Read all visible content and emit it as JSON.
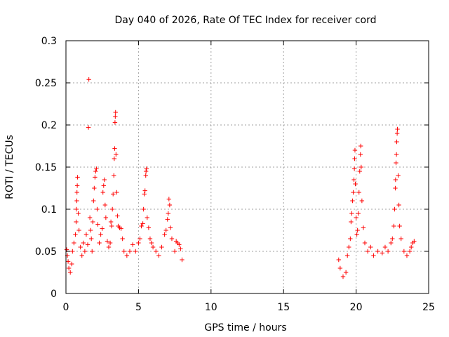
{
  "chart_data": {
    "type": "scatter",
    "title": "Day 040 of 2026, Rate Of TEC Index for receiver cord",
    "xlabel": "GPS time / hours",
    "ylabel": "ROTI / TECUs",
    "xlim": [
      0,
      25
    ],
    "ylim": [
      0,
      0.3
    ],
    "xticks": [
      0,
      5,
      10,
      15,
      20,
      25
    ],
    "xtick_labels": [
      "0",
      "5",
      "10",
      "15",
      "20",
      "25"
    ],
    "yticks": [
      0,
      0.05,
      0.1,
      0.15,
      0.2,
      0.25,
      0.3
    ],
    "ytick_labels": [
      "0",
      "0.05",
      "0.1",
      "0.15",
      "0.2",
      "0.25",
      "0.3"
    ],
    "grid": true,
    "marker": "+",
    "series": [
      {
        "name": "ROTI",
        "color": "#ff0000",
        "points": [
          [
            0.05,
            0.052
          ],
          [
            0.1,
            0.045
          ],
          [
            0.15,
            0.038
          ],
          [
            0.2,
            0.03
          ],
          [
            0.3,
            0.025
          ],
          [
            0.4,
            0.035
          ],
          [
            0.45,
            0.05
          ],
          [
            0.55,
            0.06
          ],
          [
            0.65,
            0.07
          ],
          [
            0.7,
            0.085
          ],
          [
            0.72,
            0.1
          ],
          [
            0.75,
            0.11
          ],
          [
            0.76,
            0.12
          ],
          [
            0.78,
            0.128
          ],
          [
            0.8,
            0.138
          ],
          [
            0.85,
            0.095
          ],
          [
            0.9,
            0.075
          ],
          [
            1.0,
            0.055
          ],
          [
            1.1,
            0.045
          ],
          [
            1.2,
            0.06
          ],
          [
            1.3,
            0.05
          ],
          [
            1.4,
            0.07
          ],
          [
            1.5,
            0.058
          ],
          [
            1.55,
            0.197
          ],
          [
            1.58,
            0.254
          ],
          [
            1.65,
            0.09
          ],
          [
            1.7,
            0.075
          ],
          [
            1.75,
            0.065
          ],
          [
            1.8,
            0.05
          ],
          [
            1.85,
            0.085
          ],
          [
            1.9,
            0.11
          ],
          [
            1.95,
            0.125
          ],
          [
            2.0,
            0.138
          ],
          [
            2.05,
            0.145
          ],
          [
            2.1,
            0.148
          ],
          [
            2.15,
            0.1
          ],
          [
            2.2,
            0.082
          ],
          [
            2.3,
            0.06
          ],
          [
            2.4,
            0.07
          ],
          [
            2.5,
            0.077
          ],
          [
            2.55,
            0.12
          ],
          [
            2.6,
            0.128
          ],
          [
            2.65,
            0.135
          ],
          [
            2.7,
            0.105
          ],
          [
            2.75,
            0.09
          ],
          [
            2.85,
            0.062
          ],
          [
            2.95,
            0.055
          ],
          [
            3.05,
            0.06
          ],
          [
            3.1,
            0.085
          ],
          [
            3.15,
            0.08
          ],
          [
            3.2,
            0.1
          ],
          [
            3.25,
            0.118
          ],
          [
            3.3,
            0.14
          ],
          [
            3.33,
            0.16
          ],
          [
            3.36,
            0.172
          ],
          [
            3.38,
            0.203
          ],
          [
            3.4,
            0.21
          ],
          [
            3.42,
            0.215
          ],
          [
            3.45,
            0.165
          ],
          [
            3.5,
            0.12
          ],
          [
            3.55,
            0.092
          ],
          [
            3.6,
            0.08
          ],
          [
            3.7,
            0.078
          ],
          [
            3.8,
            0.077
          ],
          [
            3.9,
            0.065
          ],
          [
            4.0,
            0.05
          ],
          [
            4.2,
            0.045
          ],
          [
            4.4,
            0.05
          ],
          [
            4.6,
            0.058
          ],
          [
            4.8,
            0.05
          ],
          [
            5.0,
            0.06
          ],
          [
            5.1,
            0.065
          ],
          [
            5.2,
            0.08
          ],
          [
            5.3,
            0.083
          ],
          [
            5.35,
            0.1
          ],
          [
            5.4,
            0.118
          ],
          [
            5.45,
            0.122
          ],
          [
            5.5,
            0.14
          ],
          [
            5.52,
            0.145
          ],
          [
            5.55,
            0.148
          ],
          [
            5.6,
            0.09
          ],
          [
            5.7,
            0.078
          ],
          [
            5.8,
            0.065
          ],
          [
            5.9,
            0.06
          ],
          [
            6.0,
            0.055
          ],
          [
            6.2,
            0.05
          ],
          [
            6.4,
            0.045
          ],
          [
            6.6,
            0.055
          ],
          [
            6.8,
            0.07
          ],
          [
            6.9,
            0.075
          ],
          [
            7.0,
            0.088
          ],
          [
            7.05,
            0.095
          ],
          [
            7.1,
            0.112
          ],
          [
            7.15,
            0.105
          ],
          [
            7.2,
            0.078
          ],
          [
            7.3,
            0.065
          ],
          [
            7.5,
            0.05
          ],
          [
            7.6,
            0.062
          ],
          [
            7.7,
            0.06
          ],
          [
            7.8,
            0.058
          ],
          [
            7.9,
            0.053
          ],
          [
            8.0,
            0.04
          ],
          [
            18.8,
            0.04
          ],
          [
            18.9,
            0.03
          ],
          [
            19.1,
            0.02
          ],
          [
            19.3,
            0.025
          ],
          [
            19.4,
            0.045
          ],
          [
            19.5,
            0.055
          ],
          [
            19.6,
            0.065
          ],
          [
            19.65,
            0.085
          ],
          [
            19.7,
            0.095
          ],
          [
            19.75,
            0.11
          ],
          [
            19.8,
            0.12
          ],
          [
            19.85,
            0.135
          ],
          [
            19.88,
            0.148
          ],
          [
            19.9,
            0.16
          ],
          [
            19.92,
            0.17
          ],
          [
            19.95,
            0.13
          ],
          [
            20.0,
            0.09
          ],
          [
            20.05,
            0.07
          ],
          [
            20.1,
            0.075
          ],
          [
            20.15,
            0.095
          ],
          [
            20.2,
            0.12
          ],
          [
            20.25,
            0.145
          ],
          [
            20.3,
            0.165
          ],
          [
            20.32,
            0.175
          ],
          [
            20.35,
            0.15
          ],
          [
            20.4,
            0.11
          ],
          [
            20.5,
            0.078
          ],
          [
            20.6,
            0.06
          ],
          [
            20.8,
            0.05
          ],
          [
            21.0,
            0.055
          ],
          [
            21.2,
            0.045
          ],
          [
            21.5,
            0.05
          ],
          [
            21.8,
            0.048
          ],
          [
            22.0,
            0.055
          ],
          [
            22.2,
            0.05
          ],
          [
            22.4,
            0.06
          ],
          [
            22.5,
            0.065
          ],
          [
            22.6,
            0.08
          ],
          [
            22.65,
            0.1
          ],
          [
            22.7,
            0.125
          ],
          [
            22.72,
            0.135
          ],
          [
            22.75,
            0.155
          ],
          [
            22.78,
            0.165
          ],
          [
            22.8,
            0.18
          ],
          [
            22.83,
            0.19
          ],
          [
            22.85,
            0.195
          ],
          [
            22.9,
            0.14
          ],
          [
            22.95,
            0.105
          ],
          [
            23.0,
            0.08
          ],
          [
            23.1,
            0.065
          ],
          [
            23.3,
            0.05
          ],
          [
            23.5,
            0.045
          ],
          [
            23.7,
            0.05
          ],
          [
            23.8,
            0.055
          ],
          [
            23.9,
            0.06
          ],
          [
            24.0,
            0.062
          ]
        ]
      }
    ]
  }
}
